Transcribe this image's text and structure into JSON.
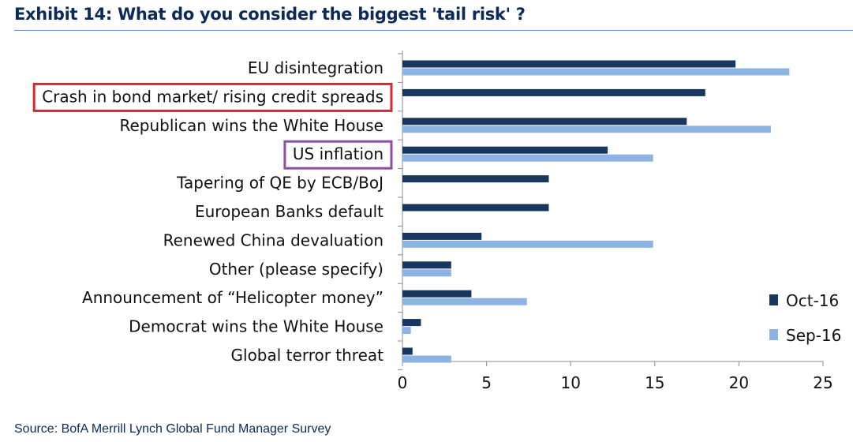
{
  "header": {
    "title": "Exhibit 14: What do you consider the biggest 'tail risk' ?"
  },
  "footer": {
    "source": "Source: BofA Merrill Lynch Global Fund Manager Survey"
  },
  "chart_data": {
    "type": "bar",
    "orientation": "horizontal",
    "categories": [
      "EU disintegration",
      "Crash in bond market/ rising credit spreads",
      "Republican wins the White House",
      "US inflation",
      "Tapering of QE by ECB/BoJ",
      "European Banks default",
      "Renewed China devaluation",
      "Other (please specify)",
      "Announcement of “Helicopter money”",
      "Democrat wins the White House",
      "Global terror threat"
    ],
    "series": [
      {
        "name": "Oct-16",
        "color": "#17375e",
        "values": [
          19.8,
          18.0,
          16.9,
          12.2,
          8.7,
          8.7,
          4.7,
          2.9,
          4.1,
          1.1,
          0.6
        ]
      },
      {
        "name": "Sep-16",
        "color": "#8db3e2",
        "values": [
          23.0,
          null,
          21.9,
          14.9,
          null,
          null,
          14.9,
          2.9,
          7.4,
          0.5,
          2.9
        ]
      }
    ],
    "xlim": [
      0,
      25
    ],
    "xticks": [
      0,
      5,
      10,
      15,
      20,
      25
    ],
    "xlabel": "",
    "ylabel": "",
    "grid": false,
    "legend_position": "bottom-right",
    "highlighted_categories": [
      {
        "category": "Crash in bond market/ rising credit spreads",
        "box_color": "#d9262c"
      },
      {
        "category": "US inflation",
        "box_color": "#8e4ea8"
      }
    ]
  }
}
